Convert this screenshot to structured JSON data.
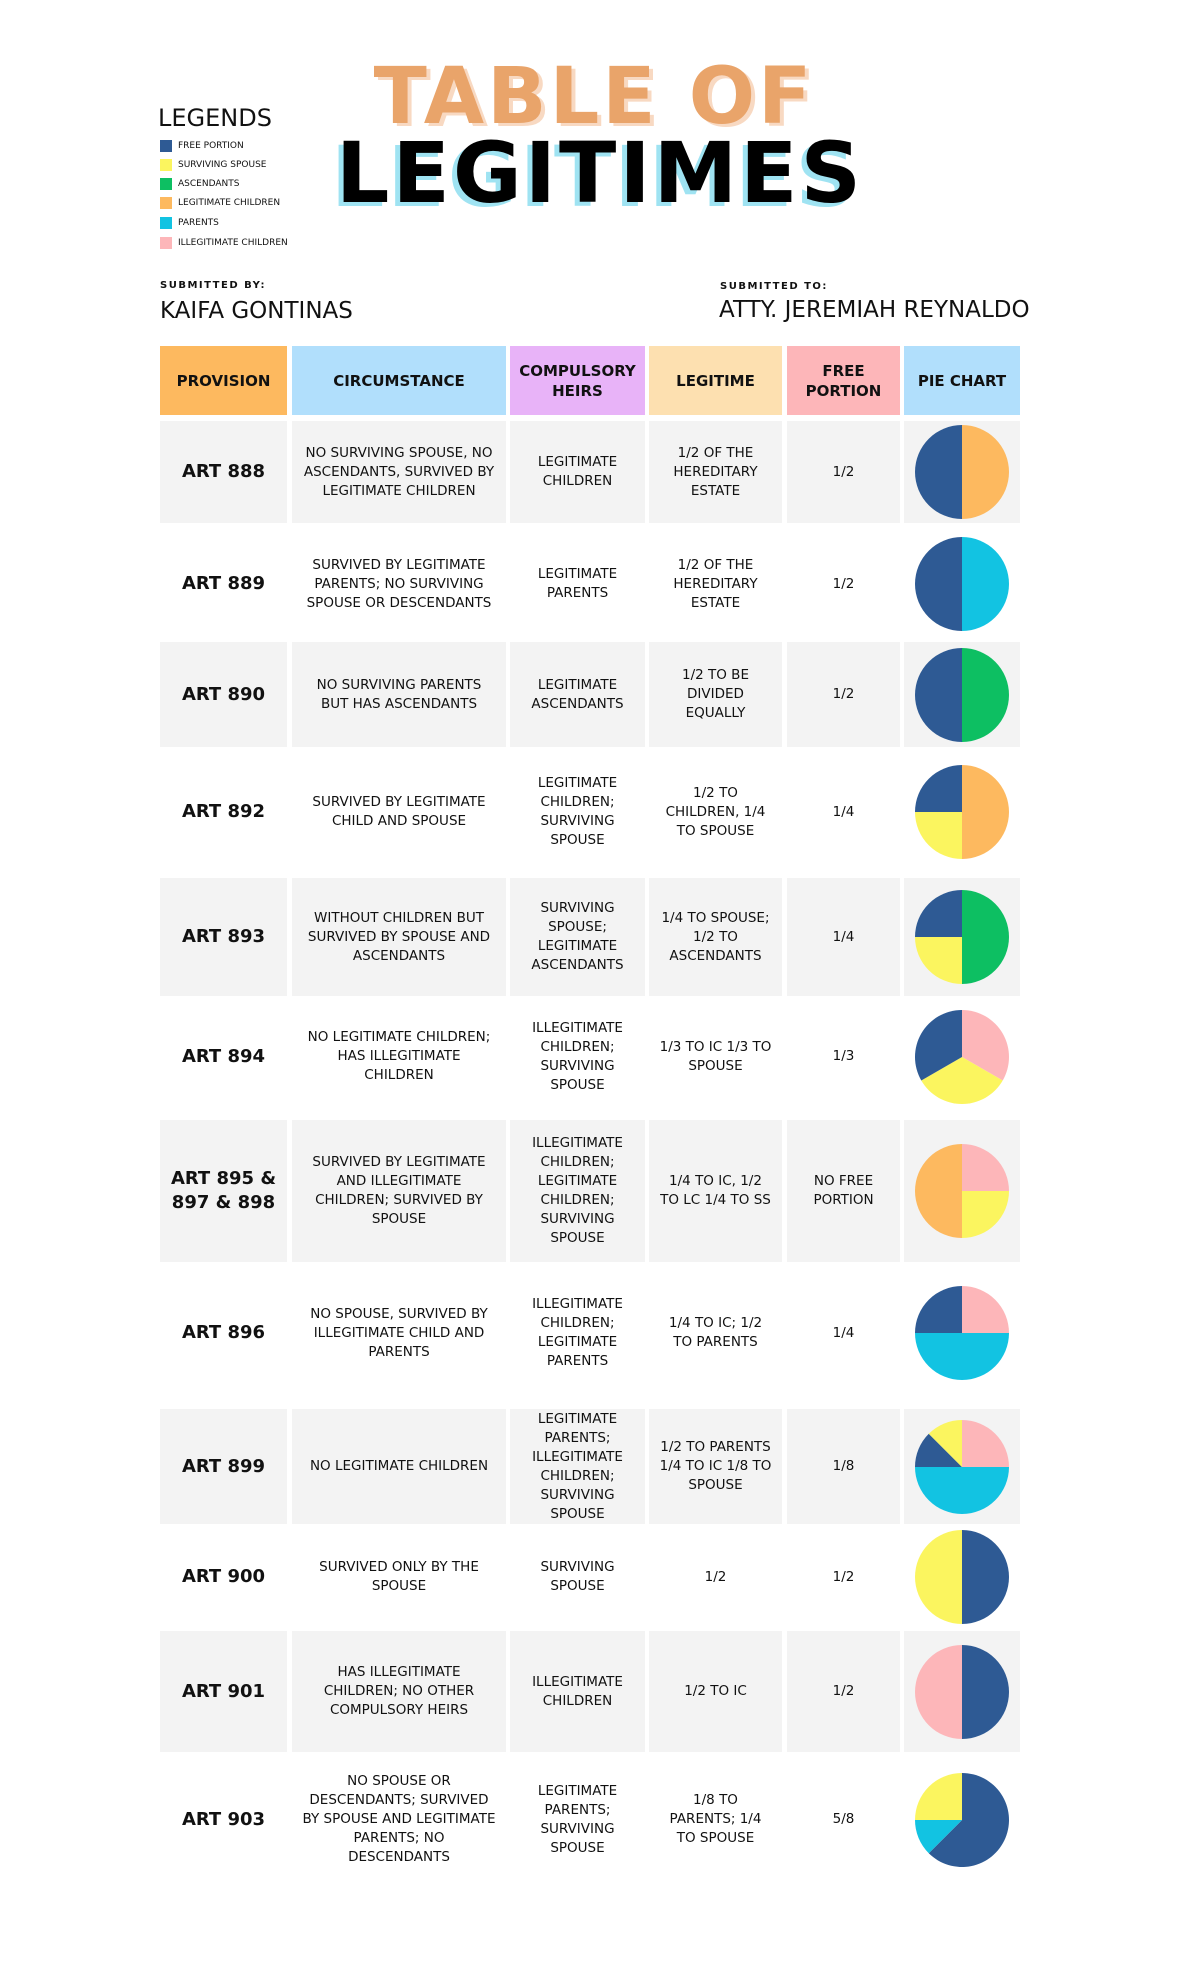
{
  "title": {
    "line1": "TABLE OF",
    "line2": "LEGITIMES"
  },
  "legend": {
    "title": "LEGENDS",
    "items": [
      {
        "label": "FREE PORTION",
        "color": "#2e5a94"
      },
      {
        "label": "SURVIVING SPOUSE",
        "color": "#fbf55f"
      },
      {
        "label": "ASCENDANTS",
        "color": "#0dbf62"
      },
      {
        "label": "LEGITIMATE CHILDREN",
        "color": "#fdb95f"
      },
      {
        "label": "PARENTS",
        "color": "#12c3e2"
      },
      {
        "label": "ILLEGITIMATE CHILDREN",
        "color": "#fdb6b9"
      }
    ]
  },
  "submitted_by": {
    "label": "SUBMITTED BY:",
    "name": "KAIFA GONTINAS"
  },
  "submitted_to": {
    "label": "SUBMITTED TO:",
    "name": "ATTY. JEREMIAH REYNALDO"
  },
  "table": {
    "header": [
      "PROVISION",
      "CIRCUMSTANCE",
      "COMPULSORY HEIRS",
      "LEGITIME",
      "FREE PORTION",
      "PIE CHART"
    ],
    "rows": [
      {
        "cells": [
          "ART 888",
          "NO SURVIVING SPOUSE, NO ASCENDANTS, SURVIVED BY LEGITIMATE CHILDREN",
          "LEGITIMATE CHILDREN",
          "1/2 OF THE HEREDITARY ESTATE",
          "1/2"
        ],
        "pie": [
          {
            "color": "#fdb95f",
            "value": 50
          },
          {
            "color": "#2e5a94",
            "value": 50
          }
        ]
      },
      {
        "cells": [
          "ART 889",
          "SURVIVED BY LEGITIMATE PARENTS; NO SURVIVING SPOUSE OR DESCENDANTS",
          "LEGITIMATE PARENTS",
          "1/2 OF THE HEREDITARY ESTATE",
          "1/2"
        ],
        "pie": [
          {
            "color": "#12c3e2",
            "value": 50
          },
          {
            "color": "#2e5a94",
            "value": 50
          }
        ]
      },
      {
        "cells": [
          "ART 890",
          "NO SURVIVING PARENTS BUT HAS ASCENDANTS",
          "LEGITIMATE ASCENDANTS",
          "1/2 TO BE DIVIDED EQUALLY",
          "1/2"
        ],
        "pie": [
          {
            "color": "#0dbf62",
            "value": 50
          },
          {
            "color": "#2e5a94",
            "value": 50
          }
        ]
      },
      {
        "cells": [
          "ART 892",
          "SURVIVED BY LEGITIMATE CHILD AND SPOUSE",
          "LEGITIMATE CHILDREN; SURVIVING SPOUSE",
          "1/2 TO CHILDREN, 1/4 TO SPOUSE",
          "1/4"
        ],
        "pie": [
          {
            "color": "#fdb95f",
            "value": 50
          },
          {
            "color": "#fbf55f",
            "value": 25
          },
          {
            "color": "#2e5a94",
            "value": 25
          }
        ]
      },
      {
        "cells": [
          "ART 893",
          "WITHOUT CHILDREN BUT SURVIVED BY SPOUSE AND ASCENDANTS",
          "SURVIVING SPOUSE; LEGITIMATE ASCENDANTS",
          "1/4 TO SPOUSE; 1/2 TO ASCENDANTS",
          "1/4"
        ],
        "pie": [
          {
            "color": "#0dbf62",
            "value": 50
          },
          {
            "color": "#fbf55f",
            "value": 25
          },
          {
            "color": "#2e5a94",
            "value": 25
          }
        ]
      },
      {
        "cells": [
          "ART 894",
          "NO LEGITIMATE CHILDREN; HAS ILLEGITIMATE CHILDREN",
          "ILLEGITIMATE CHILDREN; SURVIVING SPOUSE",
          "1/3 TO IC 1/3 TO SPOUSE",
          "1/3"
        ],
        "pie": [
          {
            "color": "#fdb6b9",
            "value": 33.3
          },
          {
            "color": "#fbf55f",
            "value": 33.3
          },
          {
            "color": "#2e5a94",
            "value": 33.3
          }
        ]
      },
      {
        "cells": [
          "ART 895 & 897 & 898",
          "SURVIVED BY LEGITIMATE AND ILLEGITIMATE CHILDREN; SURVIVED BY SPOUSE",
          "ILLEGITIMATE CHILDREN; LEGITIMATE CHILDREN; SURVIVING SPOUSE",
          "1/4 TO IC, 1/2 TO LC 1/4 TO SS",
          "NO FREE PORTION"
        ],
        "pie": [
          {
            "color": "#fdb6b9",
            "value": 25
          },
          {
            "color": "#fbf55f",
            "value": 25
          },
          {
            "color": "#fdb95f",
            "value": 50
          }
        ]
      },
      {
        "cells": [
          "ART 896",
          "NO SPOUSE, SURVIVED BY ILLEGITIMATE CHILD AND PARENTS",
          "ILLEGITIMATE CHILDREN; LEGITIMATE PARENTS",
          "1/4 TO IC; 1/2 TO PARENTS",
          "1/4"
        ],
        "pie": [
          {
            "color": "#fdb6b9",
            "value": 25
          },
          {
            "color": "#12c3e2",
            "value": 50
          },
          {
            "color": "#2e5a94",
            "value": 25
          }
        ]
      },
      {
        "cells": [
          "ART 899",
          "NO LEGITIMATE CHILDREN",
          "LEGITIMATE PARENTS; ILLEGITIMATE CHILDREN; SURVIVING SPOUSE",
          "1/2 TO PARENTS 1/4 TO IC 1/8 TO SPOUSE",
          "1/8"
        ],
        "pie": [
          {
            "color": "#fdb6b9",
            "value": 25
          },
          {
            "color": "#12c3e2",
            "value": 50
          },
          {
            "color": "#2e5a94",
            "value": 12.5
          },
          {
            "color": "#fbf55f",
            "value": 12.5
          }
        ]
      },
      {
        "cells": [
          "ART 900",
          "SURVIVED ONLY BY THE SPOUSE",
          "SURVIVING SPOUSE",
          "1/2",
          "1/2"
        ],
        "pie": [
          {
            "color": "#2e5a94",
            "value": 50
          },
          {
            "color": "#fbf55f",
            "value": 50
          }
        ]
      },
      {
        "cells": [
          "ART 901",
          "HAS ILLEGITIMATE CHILDREN; NO OTHER COMPULSORY HEIRS",
          "ILLEGITIMATE CHILDREN",
          "1/2 TO IC",
          "1/2"
        ],
        "pie": [
          {
            "color": "#2e5a94",
            "value": 50
          },
          {
            "color": "#fdb6b9",
            "value": 50
          }
        ]
      },
      {
        "cells": [
          "ART 903",
          "NO SPOUSE OR DESCENDANTS; SURVIVED BY SPOUSE AND LEGITIMATE PARENTS; NO DESCENDANTS",
          "LEGITIMATE PARENTS; SURVIVING SPOUSE",
          "1/8 TO PARENTS; 1/4 TO SPOUSE",
          "5/8"
        ],
        "pie": [
          {
            "color": "#2e5a94",
            "value": 62.5
          },
          {
            "color": "#12c3e2",
            "value": 12.5
          },
          {
            "color": "#fbf55f",
            "value": 25
          }
        ]
      }
    ]
  }
}
